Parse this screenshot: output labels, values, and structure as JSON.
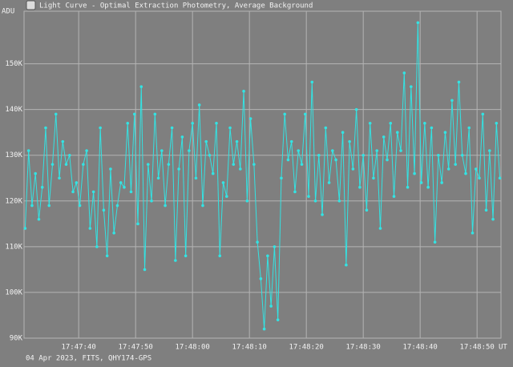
{
  "window_title": "Light Curve - Optimal Extraction Photometry, Average Background",
  "footer": "04 Apr 2023, FITS, QHY174-GPS",
  "chart_data": {
    "type": "line",
    "y_label": "ADU",
    "x_label": "UT",
    "x": [
      64050.6,
      64051.2,
      64051.8,
      64052.4,
      64053,
      64053.6,
      64054.2,
      64054.8,
      64055.4,
      64056,
      64056.6,
      64057.2,
      64057.8,
      64058.4,
      64059,
      64059.6,
      64060.2,
      64060.8,
      64061.4,
      64062,
      64062.6,
      64063.2,
      64063.8,
      64064.4,
      64065,
      64065.6,
      64066.2,
      64066.8,
      64067.4,
      64068,
      64068.6,
      64069.2,
      64069.8,
      64070.4,
      64071,
      64071.6,
      64072.2,
      64072.8,
      64073.4,
      64074,
      64074.6,
      64075.2,
      64075.8,
      64076.4,
      64077,
      64077.6,
      64078.2,
      64078.8,
      64079.4,
      64080,
      64080.6,
      64081.2,
      64081.8,
      64082.4,
      64083,
      64083.6,
      64084.2,
      64084.8,
      64085.4,
      64086,
      64086.6,
      64087.2,
      64087.8,
      64088.4,
      64089,
      64089.6,
      64090.2,
      64090.8,
      64091.4,
      64092,
      64092.6,
      64093.2,
      64093.8,
      64094.4,
      64095,
      64095.6,
      64096.2,
      64096.8,
      64097.4,
      64098,
      64098.6,
      64099.2,
      64099.8,
      64100.4,
      64101,
      64101.6,
      64102.2,
      64102.8,
      64103.4,
      64104,
      64104.6,
      64105.2,
      64105.8,
      64106.4,
      64107,
      64107.6,
      64108.2,
      64108.8,
      64109.4,
      64110,
      64110.6,
      64111.2,
      64111.8,
      64112.4,
      64113,
      64113.6,
      64114.2,
      64114.8,
      64115.4,
      64116,
      64116.6,
      64117.2,
      64117.8,
      64118.4,
      64119,
      64119.6,
      64120.2,
      64120.8,
      64121.4,
      64122,
      64122.6,
      64123.2,
      64123.8,
      64124.4,
      64125,
      64125.6,
      64126.2,
      64126.8,
      64127.4,
      64128,
      64128.6,
      64129.2,
      64129.8,
      64130.4,
      64131,
      64131.6,
      64132.2,
      64132.8,
      64133.4,
      64134
    ],
    "series": [
      {
        "color": "#33e3e3",
        "values": [
          114000,
          131000,
          119000,
          126000,
          116000,
          123000,
          136000,
          119000,
          128000,
          139000,
          125000,
          133000,
          128000,
          130000,
          122000,
          124000,
          119000,
          128000,
          131000,
          114000,
          122000,
          110000,
          136000,
          118000,
          108000,
          127000,
          113000,
          119000,
          124000,
          123000,
          137000,
          122000,
          139000,
          115000,
          145000,
          105000,
          128000,
          120000,
          139000,
          125000,
          131000,
          119000,
          128000,
          136000,
          107000,
          127000,
          134000,
          108000,
          131000,
          137000,
          125000,
          141000,
          119000,
          133000,
          130000,
          126000,
          137000,
          108000,
          124000,
          121000,
          136000,
          128000,
          133000,
          127000,
          144000,
          120000,
          138000,
          128000,
          111000,
          103000,
          92000,
          108000,
          97000,
          110000,
          94000,
          125000,
          139000,
          129000,
          133000,
          122000,
          131000,
          128000,
          139000,
          121000,
          146000,
          120000,
          130000,
          117000,
          136000,
          124000,
          131000,
          129000,
          120000,
          135000,
          106000,
          133000,
          127000,
          140000,
          123000,
          130000,
          118000,
          137000,
          125000,
          131000,
          114000,
          134000,
          129000,
          137000,
          121000,
          135000,
          131000,
          148000,
          123000,
          145000,
          126000,
          159000,
          124000,
          137000,
          123000,
          136000,
          111000,
          130000,
          124000,
          135000,
          127000,
          142000,
          128000,
          146000,
          130000,
          126000,
          136000,
          113000,
          127000,
          125000,
          139000,
          118000,
          131000,
          116000,
          137000,
          125000
        ]
      }
    ],
    "xlim": [
      64050.4,
      64134.2
    ],
    "xticks": [
      {
        "value": 64060,
        "label": "17:47:40"
      },
      {
        "value": 64070,
        "label": "17:47:50"
      },
      {
        "value": 64080,
        "label": "17:48:00"
      },
      {
        "value": 64090,
        "label": "17:48:10"
      },
      {
        "value": 64100,
        "label": "17:48:20"
      },
      {
        "value": 64110,
        "label": "17:48:30"
      },
      {
        "value": 64120,
        "label": "17:48:40"
      },
      {
        "value": 64130,
        "label": "17:48:50"
      }
    ],
    "ylim": [
      90000,
      161500
    ],
    "yticks": [
      {
        "value": 90000,
        "label": "90K"
      },
      {
        "value": 100000,
        "label": "100K"
      },
      {
        "value": 110000,
        "label": "110K"
      },
      {
        "value": 120000,
        "label": "120K"
      },
      {
        "value": 130000,
        "label": "130K"
      },
      {
        "value": 140000,
        "label": "140K"
      },
      {
        "value": 150000,
        "label": "150K"
      }
    ],
    "grid": true
  }
}
